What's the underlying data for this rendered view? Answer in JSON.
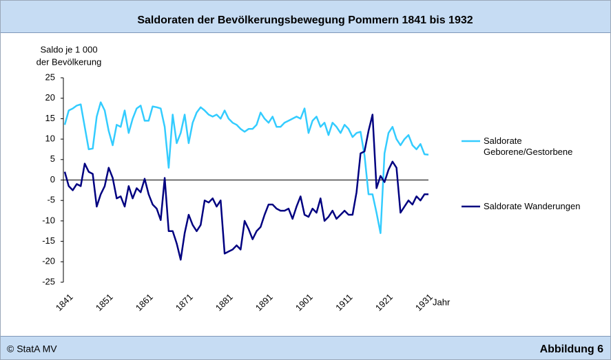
{
  "chart_data": {
    "type": "line",
    "title": "Saldoraten der Bevölkerungsbewegung Pommern 1841 bis 1932",
    "ylabel": [
      "Saldo je 1 000",
      "der Bevölkerung"
    ],
    "xlabel": "Jahr",
    "footer_left": "© StatA MV",
    "footer_right": "Abbildung 6",
    "x": [
      1841,
      1842,
      1843,
      1844,
      1845,
      1846,
      1847,
      1848,
      1849,
      1850,
      1851,
      1852,
      1853,
      1854,
      1855,
      1856,
      1857,
      1858,
      1859,
      1860,
      1861,
      1862,
      1863,
      1864,
      1865,
      1866,
      1867,
      1868,
      1869,
      1870,
      1871,
      1872,
      1873,
      1874,
      1875,
      1876,
      1877,
      1878,
      1879,
      1880,
      1881,
      1882,
      1883,
      1884,
      1885,
      1886,
      1887,
      1888,
      1889,
      1890,
      1891,
      1892,
      1893,
      1894,
      1895,
      1896,
      1897,
      1898,
      1899,
      1900,
      1901,
      1902,
      1903,
      1904,
      1905,
      1906,
      1907,
      1908,
      1909,
      1910,
      1911,
      1912,
      1913,
      1914,
      1915,
      1916,
      1917,
      1918,
      1919,
      1920,
      1921,
      1922,
      1923,
      1924,
      1925,
      1926,
      1927,
      1928,
      1929,
      1930,
      1931,
      1932
    ],
    "series": [
      {
        "name": "Saldorate Geborene/Gestorbene",
        "color": "#33ccff",
        "values": [
          13.5,
          17,
          17.5,
          18.2,
          18.5,
          13,
          7.5,
          7.7,
          15.5,
          19,
          17,
          12,
          8.5,
          13.5,
          13,
          17,
          11.5,
          15,
          17.5,
          18.2,
          14.5,
          14.5,
          18,
          17.8,
          17.5,
          13,
          3,
          16,
          9,
          11.5,
          16,
          9,
          14,
          16.5,
          17.8,
          17,
          16,
          15.5,
          16,
          15,
          17,
          15,
          14,
          13.5,
          12.5,
          11.8,
          12.5,
          12.5,
          13.5,
          16.5,
          15,
          14,
          15.5,
          13,
          13,
          14,
          14.5,
          15,
          15.5,
          15,
          17.5,
          11.5,
          14.5,
          15.5,
          13,
          14,
          11,
          14,
          13,
          11.5,
          13.5,
          12.5,
          10.5,
          11.5,
          11.8,
          6,
          -3.5,
          -3.5,
          -8,
          -13,
          6.5,
          11.5,
          13,
          10,
          8.5,
          10,
          11,
          8.5,
          7.5,
          8.8,
          6.3,
          6.2
        ]
      },
      {
        "name": "Saldorate Wanderungen",
        "color": "#000080",
        "values": [
          2,
          -1.5,
          -2.5,
          -1,
          -1.5,
          4,
          2,
          1.5,
          -6.5,
          -3.5,
          -1.5,
          3,
          0.5,
          -4.5,
          -4,
          -6.5,
          -1.5,
          -4.5,
          -2,
          -3,
          0.3,
          -3.5,
          -6,
          -7,
          -9.8,
          0.5,
          -12.5,
          -12.5,
          -15.5,
          -19.5,
          -13,
          -8.5,
          -11,
          -12.5,
          -11,
          -5,
          -5.5,
          -4.5,
          -6.5,
          -5,
          -18,
          -17.5,
          -17,
          -16,
          -17,
          -10,
          -12,
          -14.5,
          -12.5,
          -11.5,
          -8.5,
          -6,
          -6,
          -7,
          -7.5,
          -7.5,
          -7,
          -9.5,
          -6.5,
          -4,
          -8.5,
          -9,
          -7,
          -8,
          -4.5,
          -10,
          -9,
          -7.5,
          -9.5,
          -8.5,
          -7.5,
          -8.5,
          -8.5,
          -3,
          6.5,
          7,
          12,
          16,
          -2,
          1,
          -0.5,
          2.5,
          4.5,
          3,
          -8,
          -6.5,
          -5,
          -6,
          -4,
          -5,
          -3.5,
          -3.5
        ]
      }
    ],
    "xlim": [
      1841,
      1932
    ],
    "xticks": [
      1841,
      1851,
      1861,
      1871,
      1881,
      1891,
      1901,
      1911,
      1921,
      1931
    ],
    "ylim": [
      -25,
      25
    ],
    "yticks": [
      -25,
      -20,
      -15,
      -10,
      -5,
      0,
      5,
      10,
      15,
      20,
      25
    ],
    "grid": false,
    "legend": "right"
  }
}
